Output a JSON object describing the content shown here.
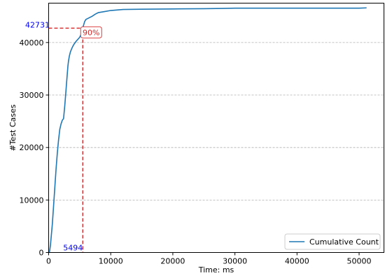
{
  "chart_data": {
    "type": "line",
    "xlabel": "Time: ms",
    "ylabel": "#Test Cases",
    "xlim": [
      0,
      54000
    ],
    "ylim": [
      0,
      47500
    ],
    "x_ticks": [
      0,
      10000,
      20000,
      30000,
      40000,
      50000
    ],
    "y_ticks": [
      0,
      10000,
      20000,
      30000,
      40000
    ],
    "y_grid": true,
    "legend_position": "lower-right",
    "series": [
      {
        "name": "Cumulative Count",
        "color": "#1f77b4",
        "x": [
          0,
          150,
          300,
          450,
          600,
          800,
          1000,
          1200,
          1400,
          1600,
          1800,
          2000,
          2200,
          2400,
          2600,
          2800,
          2900,
          3000,
          3100,
          3200,
          3350,
          3500,
          3700,
          3900,
          4100,
          4400,
          4700,
          5000,
          5200,
          5400,
          5494,
          5600,
          5700,
          5800,
          6000,
          6500,
          7000,
          7500,
          8000,
          9000,
          10000,
          11000,
          12000,
          15000,
          20000,
          25000,
          28000,
          30000,
          35000,
          40000,
          45000,
          50000,
          51200
        ],
        "values": [
          0,
          200,
          1500,
          3500,
          5500,
          9000,
          12500,
          16000,
          19000,
          21500,
          23500,
          24500,
          25200,
          25500,
          28000,
          31000,
          32500,
          34000,
          35500,
          36500,
          37500,
          38200,
          38800,
          39300,
          39700,
          40200,
          40600,
          41000,
          41500,
          42300,
          42731,
          43200,
          43600,
          44000,
          44400,
          44700,
          45000,
          45400,
          45700,
          45900,
          46100,
          46200,
          46300,
          46350,
          46400,
          46450,
          46500,
          46550,
          46550,
          46550,
          46550,
          46550,
          46600
        ]
      }
    ],
    "annotations": {
      "threshold_label": "90%",
      "x_marker_value": "5494",
      "y_marker_value": "42731",
      "marker_color": "#d62728",
      "marker_value_color": "#0000ff"
    }
  }
}
